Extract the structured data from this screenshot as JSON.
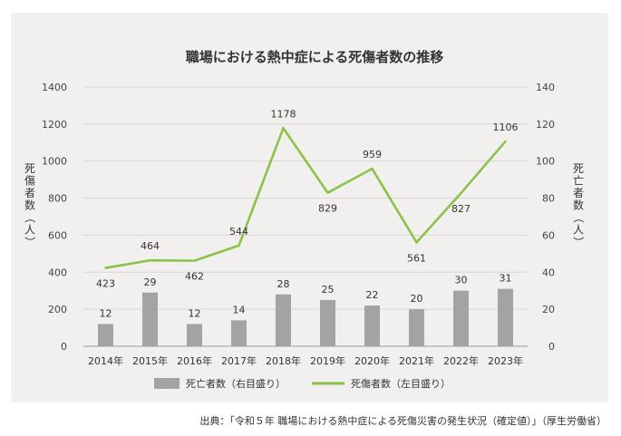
{
  "chart_data": {
    "type": "bar+line",
    "title": "職場における熱中症による死傷者数の推移",
    "categories": [
      "2014年",
      "2015年",
      "2016年",
      "2017年",
      "2018年",
      "2019年",
      "2020年",
      "2021年",
      "2022年",
      "2023年"
    ],
    "series": [
      {
        "name": "死亡者数（右目盛り）",
        "type": "bar",
        "axis": "right",
        "color": "#a3a3a3",
        "values": [
          12,
          29,
          12,
          14,
          28,
          25,
          22,
          20,
          30,
          31
        ]
      },
      {
        "name": "死傷者数（左目盛り）",
        "type": "line",
        "axis": "left",
        "color": "#8cc24a",
        "values": [
          423,
          464,
          462,
          544,
          1178,
          829,
          959,
          561,
          827,
          1106
        ]
      }
    ],
    "y_left": {
      "label": "死傷者数（人）",
      "min": 0,
      "max": 1400,
      "ticks": [
        "0",
        "200",
        "400",
        "600",
        "800",
        "1000",
        "1200",
        "1400"
      ]
    },
    "y_right": {
      "label": "死亡者数（人）",
      "min": 0,
      "max": 140,
      "ticks": [
        "0",
        "20",
        "40",
        "60",
        "80",
        "100",
        "120",
        "140"
      ]
    },
    "grid": true,
    "legend": "bottom"
  },
  "source": "出典：「令和５年 職場における熱中症による死傷災害の発生状況（確定値）」（厚生労働省）"
}
